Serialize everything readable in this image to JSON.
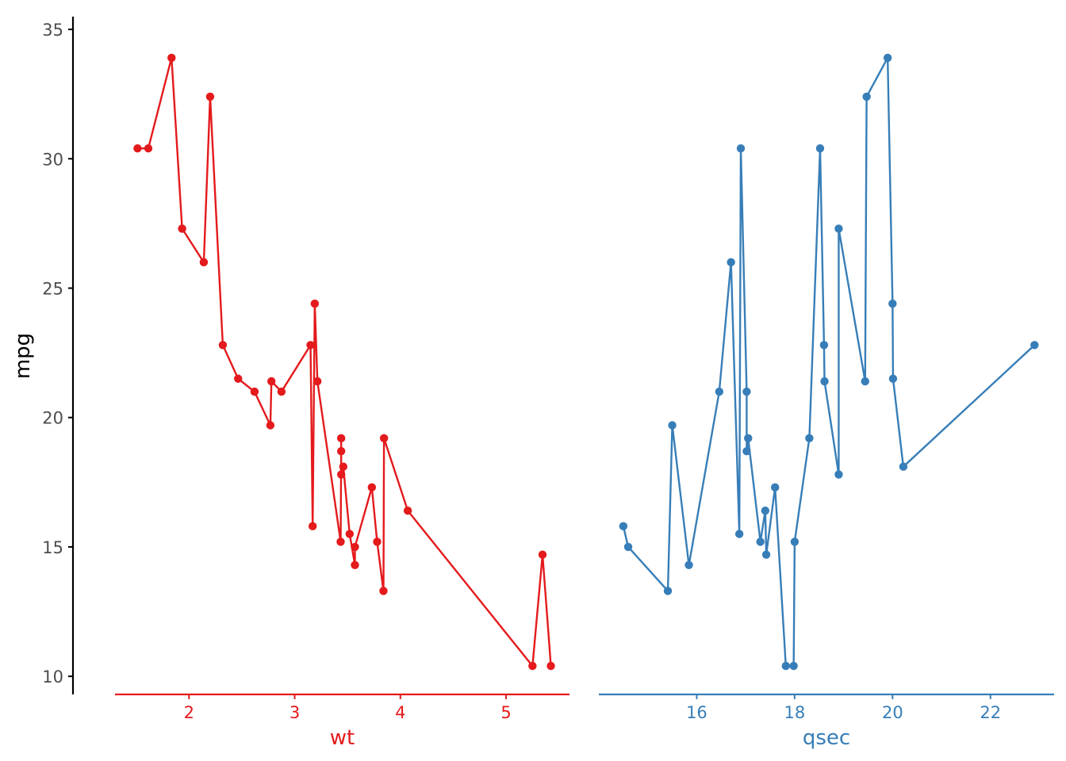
{
  "chart_data": {
    "type": "line",
    "y_axis": {
      "label": "mpg",
      "ylim": [
        9.3,
        35.4
      ],
      "ticks": [
        10,
        15,
        20,
        25,
        30,
        35
      ],
      "tick_labels": [
        "10",
        "15",
        "20",
        "25",
        "30",
        "35"
      ]
    },
    "panels": [
      {
        "xlabel": "wt",
        "color": "#E41A1C",
        "xlim": [
          1.3,
          5.6
        ],
        "ticks": [
          2,
          3,
          4,
          5
        ],
        "tick_labels": [
          "2",
          "3",
          "4",
          "5"
        ],
        "points": [
          [
            1.513,
            30.4
          ],
          [
            1.615,
            30.4
          ],
          [
            1.835,
            33.9
          ],
          [
            1.935,
            27.3
          ],
          [
            2.14,
            26.0
          ],
          [
            2.2,
            32.4
          ],
          [
            2.32,
            22.8
          ],
          [
            2.465,
            21.5
          ],
          [
            2.62,
            21.0
          ],
          [
            2.77,
            19.7
          ],
          [
            2.78,
            21.4
          ],
          [
            2.875,
            21.0
          ],
          [
            3.15,
            22.8
          ],
          [
            3.17,
            15.8
          ],
          [
            3.19,
            24.4
          ],
          [
            3.215,
            21.4
          ],
          [
            3.435,
            15.2
          ],
          [
            3.44,
            18.7
          ],
          [
            3.44,
            19.2
          ],
          [
            3.44,
            17.8
          ],
          [
            3.46,
            18.1
          ],
          [
            3.52,
            15.5
          ],
          [
            3.57,
            14.3
          ],
          [
            3.57,
            15.0
          ],
          [
            3.73,
            17.3
          ],
          [
            3.78,
            15.2
          ],
          [
            3.84,
            13.3
          ],
          [
            3.845,
            19.2
          ],
          [
            4.07,
            16.4
          ],
          [
            5.25,
            10.4
          ],
          [
            5.345,
            14.7
          ],
          [
            5.424,
            10.4
          ]
        ]
      },
      {
        "xlabel": "qsec",
        "color": "#377EB8",
        "xlim": [
          14.0,
          23.3
        ],
        "ticks": [
          16,
          18,
          20,
          22
        ],
        "tick_labels": [
          "16",
          "18",
          "20",
          "22"
        ],
        "points": [
          [
            14.5,
            15.8
          ],
          [
            14.6,
            15.0
          ],
          [
            15.41,
            13.3
          ],
          [
            15.5,
            19.7
          ],
          [
            15.84,
            14.3
          ],
          [
            16.46,
            21.0
          ],
          [
            16.7,
            26.0
          ],
          [
            16.87,
            15.5
          ],
          [
            16.9,
            30.4
          ],
          [
            17.02,
            21.0
          ],
          [
            17.02,
            18.7
          ],
          [
            17.05,
            19.2
          ],
          [
            17.3,
            15.2
          ],
          [
            17.4,
            16.4
          ],
          [
            17.42,
            14.7
          ],
          [
            17.6,
            17.3
          ],
          [
            17.82,
            10.4
          ],
          [
            17.98,
            10.4
          ],
          [
            18.0,
            15.2
          ],
          [
            18.3,
            19.2
          ],
          [
            18.52,
            30.4
          ],
          [
            18.6,
            22.8
          ],
          [
            18.61,
            21.4
          ],
          [
            18.9,
            17.8
          ],
          [
            18.9,
            27.3
          ],
          [
            19.44,
            21.4
          ],
          [
            19.47,
            32.4
          ],
          [
            19.9,
            33.9
          ],
          [
            20.0,
            24.4
          ],
          [
            20.01,
            21.5
          ],
          [
            20.22,
            18.1
          ],
          [
            22.9,
            22.8
          ]
        ]
      }
    ]
  },
  "colors": {
    "axis": "#000000",
    "tick_text": "#4D4D4D",
    "axis_title": "#000000"
  }
}
